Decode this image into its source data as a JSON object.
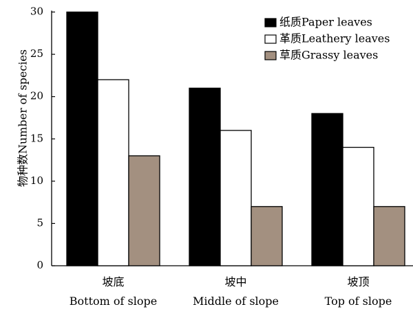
{
  "chart_data": {
    "type": "bar",
    "title": "",
    "xlabel": "",
    "ylabel": "物种数Number of species",
    "ylim": [
      0,
      30
    ],
    "yticks": [
      0,
      5,
      10,
      15,
      20,
      25,
      30
    ],
    "grid": false,
    "legend_position": "top-right",
    "categories": [
      {
        "zh": "坡底",
        "en": "Bottom of slope"
      },
      {
        "zh": "坡中",
        "en": "Middle of slope"
      },
      {
        "zh": "坡顶",
        "en": "Top of slope"
      }
    ],
    "series": [
      {
        "name": "纸质Paper leaves",
        "color": "#000000",
        "values": [
          30,
          21,
          18
        ]
      },
      {
        "name": "革质Leathery leaves",
        "color": "#ffffff",
        "values": [
          22,
          16,
          14
        ]
      },
      {
        "name": "草质Grassy leaves",
        "color": "#a39080",
        "values": [
          13,
          7,
          7
        ]
      }
    ]
  }
}
